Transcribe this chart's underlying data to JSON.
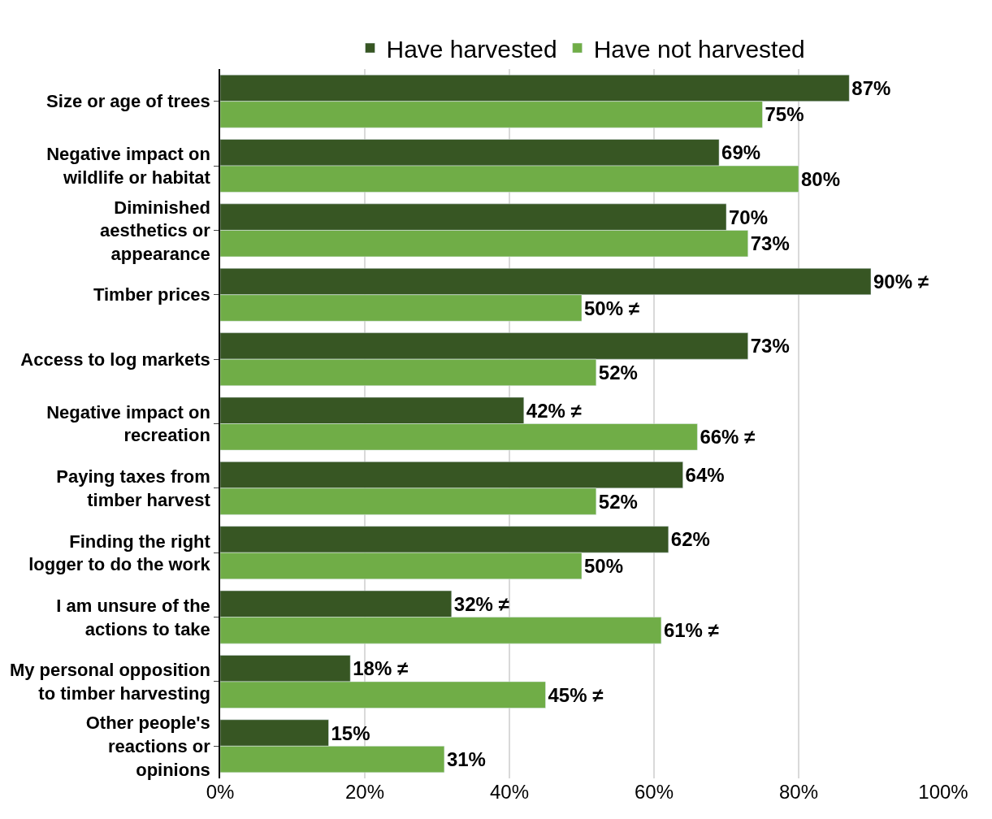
{
  "chart_data": {
    "type": "bar",
    "orientation": "horizontal",
    "categories": [
      "Size or age of trees",
      "Negative impact on wildlife or habitat",
      "Diminished aesthetics or appearance",
      "Timber prices",
      "Access to log markets",
      "Negative impact on recreation",
      "Paying taxes from timber harvest",
      "Finding the right logger to do the work",
      "I am unsure of the actions to take",
      "My personal opposition to timber harvesting",
      "Other people's reactions or opinions"
    ],
    "series": [
      {
        "name": "Have harvested",
        "color": "#375623",
        "values": [
          87,
          69,
          70,
          90,
          73,
          42,
          64,
          62,
          32,
          18,
          15
        ],
        "value_labels": [
          "87%",
          "69%",
          "70%",
          "90% ≠",
          "73%",
          "42% ≠",
          "64%",
          "62%",
          "32% ≠",
          "18% ≠",
          "15%"
        ]
      },
      {
        "name": "Have not harvested",
        "color": "#70ad47",
        "values": [
          75,
          80,
          73,
          50,
          52,
          66,
          52,
          50,
          61,
          45,
          31
        ],
        "value_labels": [
          "75%",
          "80%",
          "73%",
          "50% ≠",
          "52%",
          "66% ≠",
          "52%",
          "50%",
          "61% ≠",
          "45% ≠",
          "31%"
        ]
      }
    ],
    "xlim": [
      0,
      100
    ],
    "xticks": [
      {
        "value": 0,
        "label": "0%"
      },
      {
        "value": 20,
        "label": "20%"
      },
      {
        "value": 40,
        "label": "40%"
      },
      {
        "value": 60,
        "label": "60%"
      },
      {
        "value": 80,
        "label": "80%"
      },
      {
        "value": 100,
        "label": "100%"
      }
    ],
    "grid": "x",
    "legend": "top"
  }
}
